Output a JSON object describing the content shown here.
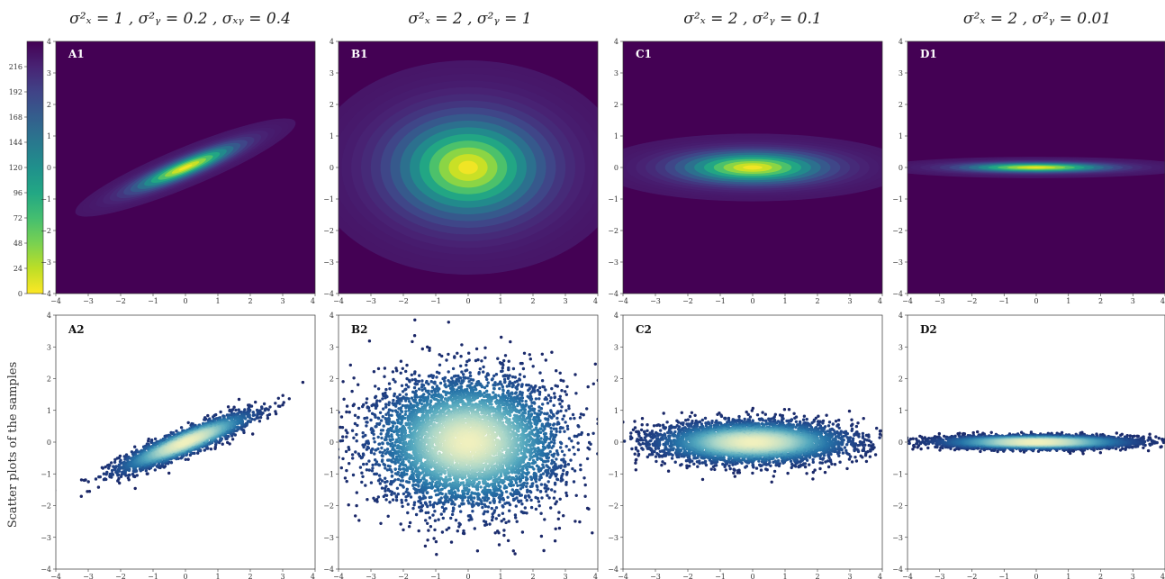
{
  "colorbar": {
    "ticks": [
      "216",
      "192",
      "168",
      "144",
      "120",
      "96",
      "72",
      "48",
      "24",
      "0"
    ],
    "vmin": 0,
    "vmax": 240
  },
  "row_label": "Scatter plots of the samples",
  "chart_data": [
    {
      "id": "A1",
      "type": "heatmap",
      "panel_label": "A1",
      "title": "σ²ₓ = 1 , σ²ᵧ = 0.2 , σₓᵧ = 0.4",
      "var_x": 1,
      "var_y": 0.2,
      "cov_xy": 0.4,
      "xlim": [
        -4,
        4
      ],
      "ylim": [
        -4,
        4
      ],
      "xticks": [
        -4,
        -3,
        -2,
        -1,
        0,
        1,
        2,
        3,
        4
      ],
      "yticks": [
        -4,
        -3,
        -2,
        -1,
        0,
        1,
        2,
        3,
        4
      ]
    },
    {
      "id": "B1",
      "type": "heatmap",
      "panel_label": "B1",
      "title": "σ²ₓ = 2 , σ²ᵧ = 1",
      "var_x": 2,
      "var_y": 1,
      "cov_xy": 0,
      "xlim": [
        -4,
        4
      ],
      "ylim": [
        -4,
        4
      ],
      "xticks": [
        -4,
        -3,
        -2,
        -1,
        0,
        1,
        2,
        3,
        4
      ],
      "yticks": [
        -4,
        -3,
        -2,
        -1,
        0,
        1,
        2,
        3,
        4
      ]
    },
    {
      "id": "C1",
      "type": "heatmap",
      "panel_label": "C1",
      "title": "σ²ₓ = 2 , σ²ᵧ = 0.1",
      "var_x": 2,
      "var_y": 0.1,
      "cov_xy": 0,
      "xlim": [
        -4,
        4
      ],
      "ylim": [
        -4,
        4
      ],
      "xticks": [
        -4,
        -3,
        -2,
        -1,
        0,
        1,
        2,
        3,
        4
      ],
      "yticks": [
        -4,
        -3,
        -2,
        -1,
        0,
        1,
        2,
        3,
        4
      ]
    },
    {
      "id": "D1",
      "type": "heatmap",
      "panel_label": "D1",
      "title": "σ²ₓ = 2 , σ²ᵧ = 0.01",
      "var_x": 2,
      "var_y": 0.01,
      "cov_xy": 0,
      "xlim": [
        -4,
        4
      ],
      "ylim": [
        -4,
        4
      ],
      "xticks": [
        -4,
        -3,
        -2,
        -1,
        0,
        1,
        2,
        3,
        4
      ],
      "yticks": [
        -4,
        -3,
        -2,
        -1,
        0,
        1,
        2,
        3,
        4
      ]
    },
    {
      "id": "A2",
      "type": "scatter",
      "panel_label": "A2",
      "var_x": 1,
      "var_y": 0.2,
      "cov_xy": 0.4,
      "n_points": 2500,
      "xlim": [
        -4,
        4
      ],
      "ylim": [
        -4,
        4
      ],
      "xticks": [
        -4,
        -3,
        -2,
        -1,
        0,
        1,
        2,
        3,
        4
      ],
      "yticks": [
        -4,
        -3,
        -2,
        -1,
        0,
        1,
        2,
        3,
        4
      ]
    },
    {
      "id": "B2",
      "type": "scatter",
      "panel_label": "B2",
      "var_x": 2,
      "var_y": 1,
      "cov_xy": 0,
      "n_points": 6000,
      "xlim": [
        -4,
        4
      ],
      "ylim": [
        -4,
        4
      ],
      "xticks": [
        -4,
        -3,
        -2,
        -1,
        0,
        1,
        2,
        3,
        4
      ],
      "yticks": [
        -4,
        -3,
        -2,
        -1,
        0,
        1,
        2,
        3,
        4
      ]
    },
    {
      "id": "C2",
      "type": "scatter",
      "panel_label": "C2",
      "var_x": 2,
      "var_y": 0.1,
      "cov_xy": 0,
      "n_points": 5000,
      "xlim": [
        -4,
        4
      ],
      "ylim": [
        -4,
        4
      ],
      "xticks": [
        -4,
        -3,
        -2,
        -1,
        0,
        1,
        2,
        3,
        4
      ],
      "yticks": [
        -4,
        -3,
        -2,
        -1,
        0,
        1,
        2,
        3,
        4
      ]
    },
    {
      "id": "D2",
      "type": "scatter",
      "panel_label": "D2",
      "var_x": 2,
      "var_y": 0.01,
      "cov_xy": 0,
      "n_points": 5000,
      "xlim": [
        -4,
        4
      ],
      "ylim": [
        -4,
        4
      ],
      "xticks": [
        -4,
        -3,
        -2,
        -1,
        0,
        1,
        2,
        3,
        4
      ],
      "yticks": [
        -4,
        -3,
        -2,
        -1,
        0,
        1,
        2,
        3,
        4
      ]
    }
  ]
}
